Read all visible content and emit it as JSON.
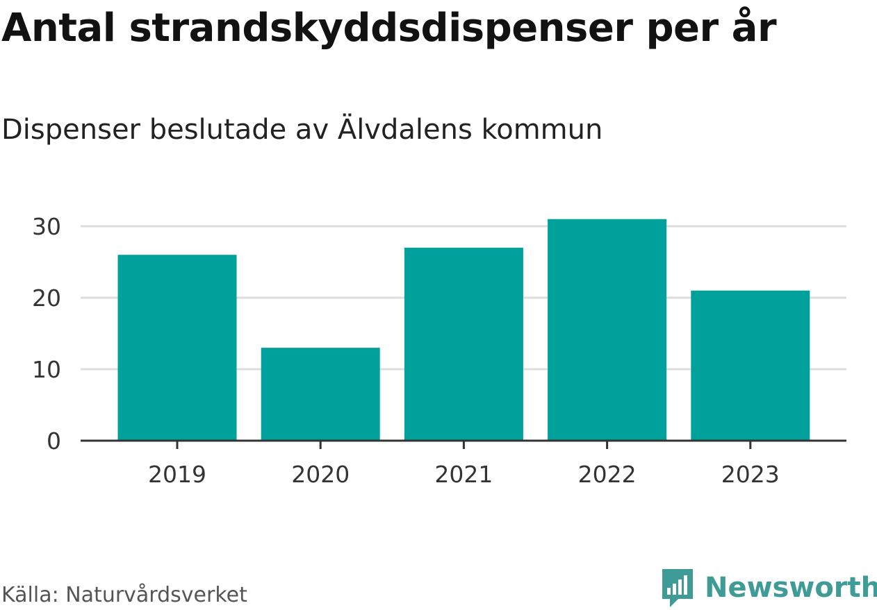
{
  "title": "Antal strandskyddsdispenser per år",
  "subtitle": "Dispenser beslutade av Älvdalens kommun",
  "source": "Källa: Naturvårdsverket",
  "brand": {
    "name": "Newsworthy",
    "icon": "newsworthy-logo-icon"
  },
  "colors": {
    "bar": "#00a19a",
    "grid": "#dddddd",
    "axis": "#333333",
    "brand": "#3e9b95"
  },
  "chart_data": {
    "type": "bar",
    "title": "Antal strandskyddsdispenser per år",
    "subtitle": "Dispenser beslutade av Älvdalens kommun",
    "categories": [
      "2019",
      "2020",
      "2021",
      "2022",
      "2023"
    ],
    "values": [
      26,
      13,
      27,
      31,
      21
    ],
    "xlabel": "",
    "ylabel": "",
    "ylim": [
      0,
      31
    ],
    "yticks": [
      0,
      10,
      20,
      30
    ],
    "grid": true
  }
}
